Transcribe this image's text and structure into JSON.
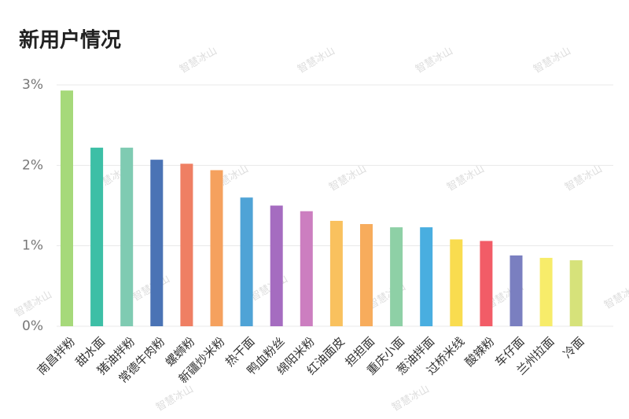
{
  "chart_data": {
    "type": "bar",
    "title": "新用户情况",
    "watermark": "智慧冰山",
    "categories": [
      "南昌拌粉",
      "甜水面",
      "猪油拌粉",
      "常德牛肉粉",
      "螺蛳粉",
      "新疆炒米粉",
      "热干面",
      "鸭血粉丝",
      "绵阳米粉",
      "红油面皮",
      "担担面",
      "重庆小面",
      "葱油拌面",
      "过桥米线",
      "酸辣粉",
      "车仔面",
      "兰州拉面",
      "冷面"
    ],
    "values": [
      2.93,
      2.22,
      2.22,
      2.07,
      2.02,
      1.94,
      1.6,
      1.5,
      1.43,
      1.31,
      1.27,
      1.23,
      1.23,
      1.08,
      1.06,
      0.88,
      0.85,
      0.82
    ],
    "colors": [
      "#a6d97a",
      "#3dbfa6",
      "#7fcbb2",
      "#4a73b5",
      "#ef7f63",
      "#f5a15e",
      "#4fa3d6",
      "#a56cc0",
      "#cc7ec0",
      "#f9c15e",
      "#f7ac5c",
      "#8ed0a6",
      "#49aee0",
      "#f9dc4f",
      "#f25c67",
      "#7a7fc0",
      "#f7ec6a",
      "#d6e27a"
    ],
    "ylim": [
      0,
      3
    ],
    "yticks": [
      {
        "value": 0,
        "label": "0%"
      },
      {
        "value": 1,
        "label": "1%"
      },
      {
        "value": 2,
        "label": "2%"
      },
      {
        "value": 3,
        "label": "3%"
      }
    ],
    "grid": true
  }
}
